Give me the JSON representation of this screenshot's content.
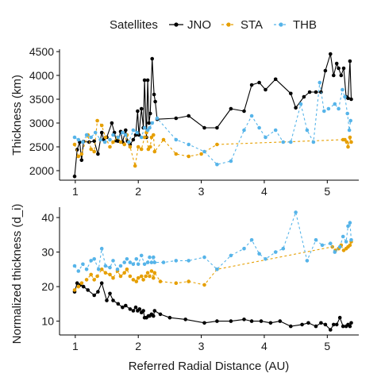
{
  "chart_data": [
    {
      "type": "line",
      "xlabel": "",
      "ylabel": "Thickness (km)",
      "xlim": [
        0.75,
        5.5
      ],
      "ylim": [
        1800,
        4550
      ],
      "xticks": [
        1,
        2,
        3,
        4,
        5
      ],
      "yticks": [
        2000,
        2500,
        3000,
        3500,
        4000,
        4500
      ],
      "grid": false,
      "series": [
        {
          "name": "JNO",
          "color": "#000000",
          "line_style": "solid",
          "x": [
            0.99,
            1.03,
            1.07,
            1.1,
            1.13,
            1.22,
            1.3,
            1.36,
            1.42,
            1.45,
            1.5,
            1.58,
            1.62,
            1.65,
            1.68,
            1.72,
            1.75,
            1.8,
            1.83,
            1.87,
            1.92,
            1.96,
            1.99,
            2.01,
            2.05,
            2.08,
            2.1,
            2.13,
            2.15,
            2.17,
            2.19,
            2.22,
            2.25,
            2.27,
            2.3,
            2.6,
            2.8,
            3.05,
            3.25,
            3.47,
            3.68,
            3.8,
            3.92,
            4.02,
            4.18,
            4.42,
            4.5,
            4.63,
            4.72,
            4.82,
            4.9,
            4.97,
            5.05,
            5.1,
            5.15,
            5.18,
            5.22,
            5.26,
            5.3,
            5.33,
            5.36,
            5.38
          ],
          "y": [
            1880,
            2440,
            2600,
            2220,
            2610,
            2600,
            2620,
            2350,
            2800,
            2650,
            2700,
            3000,
            2800,
            2630,
            2620,
            2820,
            2600,
            2850,
            2620,
            2550,
            2650,
            2750,
            3250,
            2750,
            3300,
            2900,
            3900,
            2700,
            3900,
            3000,
            3200,
            4350,
            3600,
            3450,
            3080,
            3100,
            3150,
            2900,
            2900,
            3300,
            3250,
            3800,
            3850,
            3700,
            3920,
            3620,
            3320,
            3550,
            3650,
            3650,
            3650,
            4100,
            4450,
            4000,
            4250,
            4150,
            4000,
            4150,
            3550,
            3520,
            4300,
            3500
          ]
        },
        {
          "name": "STA",
          "color": "#E69F00",
          "line_style": "dashed",
          "x": [
            0.99,
            1.05,
            1.1,
            1.2,
            1.25,
            1.3,
            1.35,
            1.42,
            1.48,
            1.55,
            1.6,
            1.67,
            1.72,
            1.78,
            1.82,
            1.87,
            1.95,
            2.0,
            2.05,
            2.1,
            2.13,
            2.16,
            2.19,
            2.21,
            2.24,
            2.26,
            2.4,
            2.6,
            2.8,
            3.0,
            3.25,
            5.25,
            5.28,
            5.31,
            5.33,
            5.36,
            5.38
          ],
          "y": [
            2550,
            2300,
            2350,
            2750,
            2450,
            2400,
            3050,
            2950,
            2700,
            2500,
            2600,
            2700,
            2600,
            2550,
            2750,
            2500,
            2100,
            2500,
            2450,
            2700,
            2800,
            2450,
            2500,
            2700,
            2750,
            2400,
            2650,
            2350,
            2300,
            2350,
            2550,
            2650,
            2650,
            2600,
            2500,
            2700,
            2600
          ]
        },
        {
          "name": "THB",
          "color": "#56B4E9",
          "line_style": "dashed",
          "x": [
            0.99,
            1.05,
            1.12,
            1.18,
            1.25,
            1.32,
            1.4,
            1.47,
            1.55,
            1.6,
            1.68,
            1.75,
            1.8,
            1.85,
            1.92,
            1.98,
            2.05,
            2.1,
            2.15,
            2.18,
            2.22,
            2.3,
            2.6,
            2.8,
            3.05,
            3.25,
            3.47,
            3.68,
            3.8,
            3.92,
            4.02,
            4.18,
            4.3,
            4.42,
            4.58,
            4.68,
            4.78,
            4.88,
            4.95,
            5.02,
            5.12,
            5.18,
            5.24,
            5.28,
            5.32,
            5.35,
            5.37
          ],
          "y": [
            2700,
            2650,
            2600,
            2750,
            2700,
            2800,
            2650,
            2600,
            2650,
            2750,
            2700,
            2800,
            2750,
            2600,
            2850,
            2800,
            2700,
            2900,
            2850,
            2900,
            3000,
            3100,
            2650,
            2550,
            2400,
            2130,
            2200,
            2850,
            3150,
            2900,
            2700,
            2850,
            2600,
            2600,
            3400,
            2850,
            2600,
            3850,
            3250,
            3300,
            3400,
            3300,
            3700,
            3550,
            3200,
            2850,
            3050
          ]
        }
      ]
    },
    {
      "type": "line",
      "xlabel": "Referred Radial Distance (AU)",
      "ylabel": "Normalized thickness (d_i)",
      "xlim": [
        0.75,
        5.5
      ],
      "ylim": [
        6,
        43
      ],
      "xticks": [
        1,
        2,
        3,
        4,
        5
      ],
      "yticks": [
        10,
        20,
        30,
        40
      ],
      "grid": false,
      "series": [
        {
          "name": "JNO",
          "color": "#000000",
          "line_style": "solid",
          "x": [
            0.99,
            1.03,
            1.08,
            1.13,
            1.2,
            1.3,
            1.36,
            1.42,
            1.5,
            1.55,
            1.6,
            1.68,
            1.75,
            1.8,
            1.87,
            1.92,
            1.96,
            1.99,
            2.02,
            2.05,
            2.08,
            2.1,
            2.13,
            2.16,
            2.18,
            2.21,
            2.24,
            2.26,
            2.35,
            2.5,
            2.75,
            3.05,
            3.25,
            3.47,
            3.68,
            3.8,
            3.95,
            4.1,
            4.25,
            4.42,
            4.6,
            4.7,
            4.82,
            4.9,
            4.97,
            5.05,
            5.1,
            5.15,
            5.2,
            5.25,
            5.3,
            5.33,
            5.36,
            5.38
          ],
          "y": [
            18.5,
            21.0,
            20.5,
            20.0,
            19.0,
            17.5,
            18.5,
            21.0,
            16.0,
            18.0,
            16.0,
            15.0,
            14.0,
            14.5,
            13.5,
            13.0,
            14.0,
            13.0,
            13.5,
            12.5,
            13.0,
            11.0,
            11.0,
            11.5,
            11.5,
            12.0,
            11.5,
            13.0,
            12.0,
            11.0,
            10.5,
            9.5,
            10.0,
            10.0,
            10.5,
            10.0,
            10.0,
            9.5,
            10.0,
            8.5,
            9.0,
            9.5,
            8.5,
            9.5,
            9.0,
            7.5,
            9.0,
            9.0,
            11.0,
            8.5,
            8.5,
            9.0,
            8.5,
            9.5
          ]
        },
        {
          "name": "STA",
          "color": "#E69F00",
          "line_style": "dashed",
          "x": [
            0.99,
            1.05,
            1.1,
            1.18,
            1.25,
            1.3,
            1.35,
            1.42,
            1.48,
            1.55,
            1.6,
            1.67,
            1.72,
            1.78,
            1.82,
            1.87,
            1.92,
            1.97,
            2.0,
            2.05,
            2.08,
            2.12,
            2.15,
            2.18,
            2.21,
            2.24,
            2.26,
            2.35,
            2.6,
            2.8,
            3.05,
            3.25,
            5.08,
            5.13,
            5.18,
            5.22,
            5.26,
            5.3,
            5.33,
            5.36,
            5.38
          ],
          "y": [
            19.0,
            20.0,
            21.0,
            22.0,
            23.5,
            22.0,
            23.0,
            25.0,
            24.0,
            23.5,
            22.5,
            24.5,
            23.0,
            24.0,
            25.0,
            23.0,
            22.0,
            21.5,
            22.5,
            23.0,
            22.0,
            23.0,
            24.0,
            23.0,
            24.5,
            22.5,
            24.0,
            21.5,
            21.0,
            21.5,
            20.5,
            25.0,
            31.5,
            30.5,
            31.0,
            32.0,
            30.5,
            31.0,
            31.5,
            32.0,
            33.0
          ]
        },
        {
          "name": "THB",
          "color": "#56B4E9",
          "line_style": "dashed",
          "x": [
            0.99,
            1.05,
            1.12,
            1.18,
            1.25,
            1.3,
            1.37,
            1.42,
            1.48,
            1.55,
            1.6,
            1.67,
            1.72,
            1.78,
            1.82,
            1.87,
            1.92,
            1.97,
            2.0,
            2.05,
            2.1,
            2.15,
            2.18,
            2.21,
            2.24,
            2.26,
            2.4,
            2.6,
            2.8,
            3.05,
            3.25,
            3.47,
            3.68,
            3.8,
            3.92,
            4.02,
            4.18,
            4.3,
            4.5,
            4.68,
            4.82,
            4.92,
            5.05,
            5.12,
            5.2,
            5.25,
            5.3,
            5.33,
            5.36,
            5.38
          ],
          "y": [
            26.0,
            24.5,
            26.5,
            25.0,
            27.5,
            28.0,
            25.0,
            31.0,
            26.0,
            25.5,
            27.5,
            25.0,
            26.0,
            27.0,
            28.0,
            27.0,
            26.5,
            28.0,
            26.5,
            29.0,
            26.5,
            27.0,
            28.5,
            27.0,
            28.5,
            27.0,
            27.0,
            27.5,
            27.5,
            28.5,
            25.0,
            29.0,
            31.0,
            33.5,
            29.5,
            28.0,
            30.0,
            31.0,
            41.5,
            27.5,
            33.5,
            32.0,
            32.5,
            30.0,
            31.5,
            34.5,
            33.0,
            37.5,
            38.5,
            33.5
          ]
        }
      ]
    }
  ],
  "legend": {
    "title": "Satellites",
    "placement": "top",
    "items": [
      {
        "label": "JNO",
        "color": "#000000",
        "line_style": "solid"
      },
      {
        "label": "STA",
        "color": "#E69F00",
        "line_style": "dashed"
      },
      {
        "label": "THB",
        "color": "#56B4E9",
        "line_style": "dashed"
      }
    ]
  }
}
